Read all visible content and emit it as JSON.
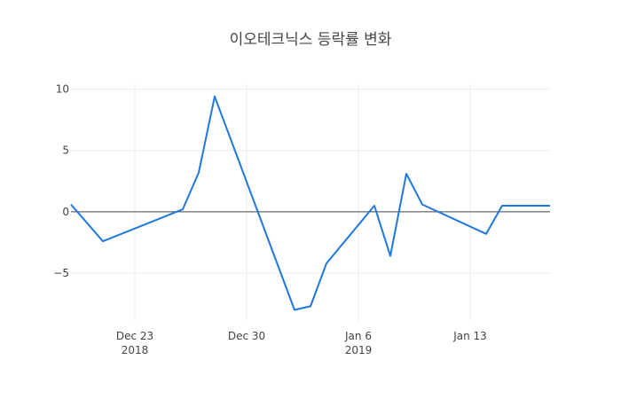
{
  "chart_data": {
    "type": "line",
    "title": "이오테크닉스 등락률 변화",
    "xlabel": "",
    "ylabel": "",
    "x": [
      "2018-12-19",
      "2018-12-21",
      "2018-12-26",
      "2018-12-27",
      "2018-12-28",
      "2019-01-02",
      "2019-01-03",
      "2019-01-04",
      "2019-01-07",
      "2019-01-08",
      "2019-01-09",
      "2019-01-10",
      "2019-01-14",
      "2019-01-15",
      "2019-01-18"
    ],
    "series": [
      {
        "name": "",
        "color": "#1f77e0",
        "values": [
          0.6,
          -2.4,
          0.2,
          3.2,
          9.4,
          -8.0,
          -7.7,
          -4.2,
          0.5,
          -3.6,
          3.1,
          0.6,
          -1.8,
          0.5,
          0.5
        ]
      }
    ],
    "xlim": [
      "2018-12-19",
      "2019-01-18"
    ],
    "ylim": [
      -8.9,
      10.4
    ],
    "yticks": [
      10,
      5,
      0,
      -5
    ],
    "ytick_labels": [
      "10",
      "5",
      "0",
      "−5"
    ],
    "xticks": [
      "2018-12-23",
      "2018-12-30",
      "2019-01-06",
      "2019-01-13"
    ],
    "xtick_labels": [
      {
        "date": "Dec 23",
        "year": "2018"
      },
      {
        "date": "Dec 30",
        "year": ""
      },
      {
        "date": "Jan 6",
        "year": "2019"
      },
      {
        "date": "Jan 13",
        "year": ""
      }
    ],
    "grid": true,
    "zero_line": true,
    "legend": "none"
  }
}
